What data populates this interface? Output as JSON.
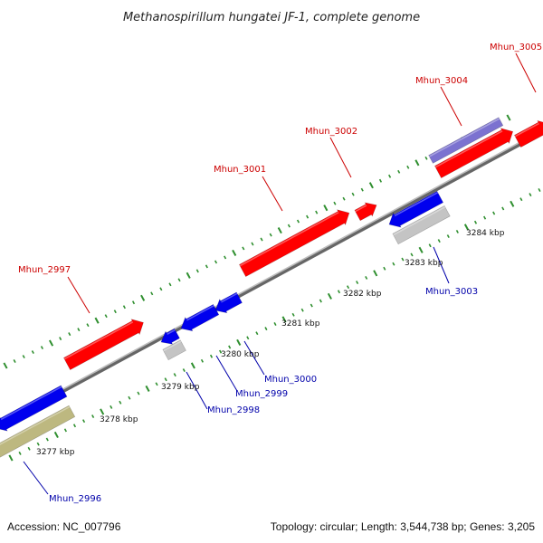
{
  "title": "Methanospirillum hungatei JF-1, complete genome",
  "footer": {
    "accession": "Accession: NC_007796",
    "summary": "Topology: circular; Length: 3,544,738 bp; Genes: 3,205"
  },
  "colors": {
    "forward_label": "#cc0000",
    "reverse_label": "#0000aa",
    "backbone": "#888888",
    "tick": "#2f8f2f",
    "red_gene": "#ff0000",
    "blue_gene": "#0000ee",
    "gray_gene": "#c4c4c4",
    "olive_gene": "#bdb880",
    "purple_gene": "#7b72d0"
  },
  "scale_labels": [
    {
      "text": "3277 kbp"
    },
    {
      "text": "3278 kbp"
    },
    {
      "text": "3279 kbp"
    },
    {
      "text": "3280 kbp"
    },
    {
      "text": "3281 kbp"
    },
    {
      "text": "3282 kbp"
    },
    {
      "text": "3283 kbp"
    },
    {
      "text": "3284 kbp"
    }
  ],
  "genes": [
    {
      "label": "Mhun_2996",
      "strand": "reverse",
      "color": "blue_gene"
    },
    {
      "label": "Mhun_2997",
      "strand": "forward",
      "color": "red_gene"
    },
    {
      "label": "Mhun_2998",
      "strand": "reverse",
      "color": "blue_gene"
    },
    {
      "label": "Mhun_2999",
      "strand": "reverse",
      "color": "blue_gene"
    },
    {
      "label": "Mhun_3000",
      "strand": "reverse",
      "color": "blue_gene"
    },
    {
      "label": "Mhun_3001",
      "strand": "forward",
      "color": "red_gene"
    },
    {
      "label": "Mhun_3002",
      "strand": "forward",
      "color": "red_gene"
    },
    {
      "label": "Mhun_3003",
      "strand": "reverse",
      "color": "blue_gene"
    },
    {
      "label": "Mhun_3004",
      "strand": "forward",
      "color": "red_gene"
    },
    {
      "label": "Mhun_3005",
      "strand": "forward",
      "color": "red_gene"
    }
  ]
}
